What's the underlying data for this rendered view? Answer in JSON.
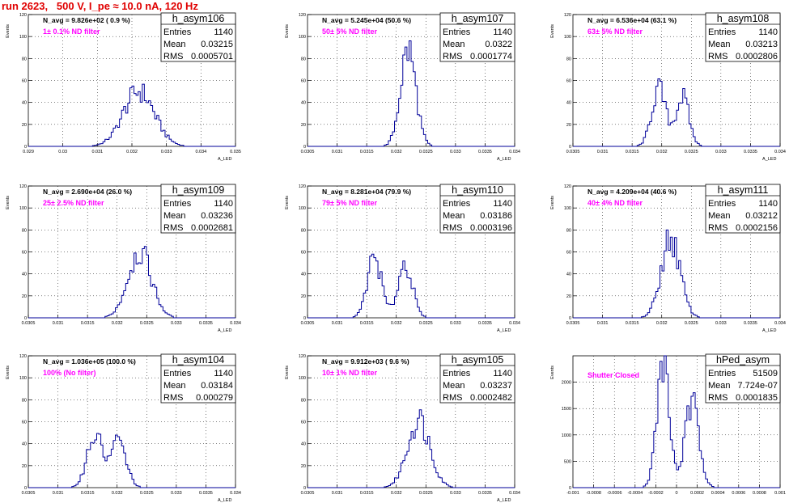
{
  "run_title": "run 2623,   500 V, I_pe ≈ 10.0 nA, 120 Hz",
  "colors": {
    "title": "#e00000",
    "histogram": "#000099",
    "filter_label": "#ff00ff",
    "grid": "#000000"
  },
  "chart_data": [
    {
      "type": "bar",
      "name": "h_asym106",
      "navg": "N_avg = 9.826e+02 ( 0.9 %)",
      "filter": "1± 0.1% ND filter",
      "stats": {
        "entries": "1140",
        "mean": "0.03215",
        "rms": "0.0005701"
      },
      "xlim": [
        0.029,
        0.035
      ],
      "ylim": [
        0,
        120
      ],
      "xticks": [
        "0.029",
        "0.03",
        "0.031",
        "0.032",
        "0.033",
        "0.034",
        "0.035"
      ],
      "yticks": [
        "0",
        "20",
        "40",
        "60",
        "80",
        "100",
        "120"
      ],
      "ylabel": "Events",
      "xlabel": "A_LED",
      "shape": [
        [
          0.0322,
          0.00045,
          50
        ]
      ]
    },
    {
      "type": "bar",
      "name": "h_asym107",
      "navg": "N_avg = 5.245e+04 (50.6 %)",
      "filter": "50± 5% ND filter",
      "stats": {
        "entries": "1140",
        "mean": "0.0322",
        "rms": "0.0001774"
      },
      "xlim": [
        0.0305,
        0.034
      ],
      "ylim": [
        0,
        120
      ],
      "xticks": [
        "0.0305",
        "0.031",
        "0.0315",
        "0.032",
        "0.0325",
        "0.033",
        "0.0335",
        "0.034"
      ],
      "yticks": [
        "0",
        "20",
        "40",
        "60",
        "80",
        "100",
        "120"
      ],
      "ylabel": "Events",
      "xlabel": "A_LED",
      "shape": [
        [
          0.0322,
          0.00013,
          88
        ]
      ]
    },
    {
      "type": "bar",
      "name": "h_asym108",
      "navg": "N_avg = 6.536e+04 (63.1 %)",
      "filter": "63± 5% ND filter",
      "stats": {
        "entries": "1140",
        "mean": "0.03213",
        "rms": "0.0002806"
      },
      "xlim": [
        0.0305,
        0.034
      ],
      "ylim": [
        0,
        120
      ],
      "xticks": [
        "0.0305",
        "0.031",
        "0.0315",
        "0.032",
        "0.0325",
        "0.033",
        "0.0335",
        "0.034"
      ],
      "yticks": [
        "0",
        "20",
        "40",
        "60",
        "80",
        "100",
        "120"
      ],
      "ylabel": "Events",
      "xlabel": "A_LED",
      "shape": [
        [
          0.03195,
          0.00012,
          52
        ],
        [
          0.03235,
          0.00011,
          45
        ]
      ]
    },
    {
      "type": "bar",
      "name": "h_asym109",
      "navg": "N_avg = 2.690e+04 (26.0 %)",
      "filter": "25± 2.5% ND filter",
      "stats": {
        "entries": "1140",
        "mean": "0.03236",
        "rms": "0.0002681"
      },
      "xlim": [
        0.0305,
        0.034
      ],
      "ylim": [
        0,
        120
      ],
      "xticks": [
        "0.0305",
        "0.031",
        "0.0315",
        "0.032",
        "0.0325",
        "0.033",
        "0.0335",
        "0.034"
      ],
      "yticks": [
        "0",
        "20",
        "40",
        "60",
        "80",
        "100",
        "120"
      ],
      "ylabel": "Events",
      "xlabel": "A_LED",
      "shape": [
        [
          0.03238,
          0.0002,
          60
        ]
      ]
    },
    {
      "type": "bar",
      "name": "h_asym110",
      "navg": "N_avg = 8.281e+04 (79.9 %)",
      "filter": "79± 5% ND filter",
      "stats": {
        "entries": "1140",
        "mean": "0.03186",
        "rms": "0.0003196"
      },
      "xlim": [
        0.0305,
        0.034
      ],
      "ylim": [
        0,
        120
      ],
      "xticks": [
        "0.0305",
        "0.031",
        "0.0315",
        "0.032",
        "0.0325",
        "0.033",
        "0.0335",
        "0.034"
      ],
      "yticks": [
        "0",
        "20",
        "40",
        "60",
        "80",
        "100",
        "120"
      ],
      "ylabel": "Events",
      "xlabel": "A_LED",
      "shape": [
        [
          0.03163,
          0.00012,
          55
        ],
        [
          0.03215,
          0.00012,
          50
        ]
      ]
    },
    {
      "type": "bar",
      "name": "h_asym111",
      "navg": "N_avg = 4.209e+04 (40.6 %)",
      "filter": "40± 4% ND filter",
      "stats": {
        "entries": "1140",
        "mean": "0.03212",
        "rms": "0.0002156"
      },
      "xlim": [
        0.0305,
        0.034
      ],
      "ylim": [
        0,
        120
      ],
      "xticks": [
        "0.0305",
        "0.031",
        "0.0315",
        "0.032",
        "0.0325",
        "0.033",
        "0.0335",
        "0.034"
      ],
      "yticks": [
        "0",
        "20",
        "40",
        "60",
        "80",
        "100",
        "120"
      ],
      "ylabel": "Events",
      "xlabel": "A_LED",
      "shape": [
        [
          0.03215,
          0.00016,
          72
        ]
      ]
    },
    {
      "type": "bar",
      "name": "h_asym104",
      "navg": "N_avg = 1.036e+05 (100.0 %)",
      "filter": "100% (No filter)",
      "stats": {
        "entries": "1140",
        "mean": "0.03184",
        "rms": "0.000279"
      },
      "xlim": [
        0.0305,
        0.034
      ],
      "ylim": [
        0,
        120
      ],
      "xticks": [
        "0.0305",
        "0.031",
        "0.0315",
        "0.032",
        "0.0325",
        "0.033",
        "0.0335",
        "0.034"
      ],
      "yticks": [
        "0",
        "20",
        "40",
        "60",
        "80",
        "100",
        "120"
      ],
      "ylabel": "Events",
      "xlabel": "A_LED",
      "shape": [
        [
          0.03162,
          0.00013,
          48
        ],
        [
          0.03202,
          0.00013,
          42
        ]
      ]
    },
    {
      "type": "bar",
      "name": "h_asym105",
      "navg": "N_avg = 9.912e+03 ( 9.6 %)",
      "filter": "10± 1% ND filter",
      "stats": {
        "entries": "1140",
        "mean": "0.03237",
        "rms": "0.0002482"
      },
      "xlim": [
        0.0305,
        0.034
      ],
      "ylim": [
        0,
        120
      ],
      "xticks": [
        "0.0305",
        "0.031",
        "0.0315",
        "0.032",
        "0.0325",
        "0.033",
        "0.0335",
        "0.034"
      ],
      "yticks": [
        "0",
        "20",
        "40",
        "60",
        "80",
        "100",
        "120"
      ],
      "ylabel": "Events",
      "xlabel": "A_LED",
      "shape": [
        [
          0.03238,
          0.00019,
          62
        ]
      ]
    },
    {
      "type": "bar",
      "name": "hPed_asym",
      "navg": "",
      "filter": "Shutter Closed",
      "stats": {
        "entries": "51509",
        "mean": "7.724e-07",
        "rms": "0.0001835"
      },
      "xlim": [
        -0.001,
        0.001
      ],
      "ylim": [
        0,
        2500
      ],
      "xticks": [
        "-0.001",
        "-0.0008",
        "-0.0006",
        "-0.0004",
        "-0.0002",
        "0",
        "0.0002",
        "0.0004",
        "0.0006",
        "0.0008",
        "0.001"
      ],
      "yticks": [
        "0",
        "500",
        "1000",
        "1500",
        "2000"
      ],
      "ylabel": "Events",
      "xlabel": "",
      "shape": [
        [
          -0.00013,
          6e-05,
          2400
        ],
        [
          0.00015,
          7e-05,
          1550
        ]
      ]
    }
  ]
}
